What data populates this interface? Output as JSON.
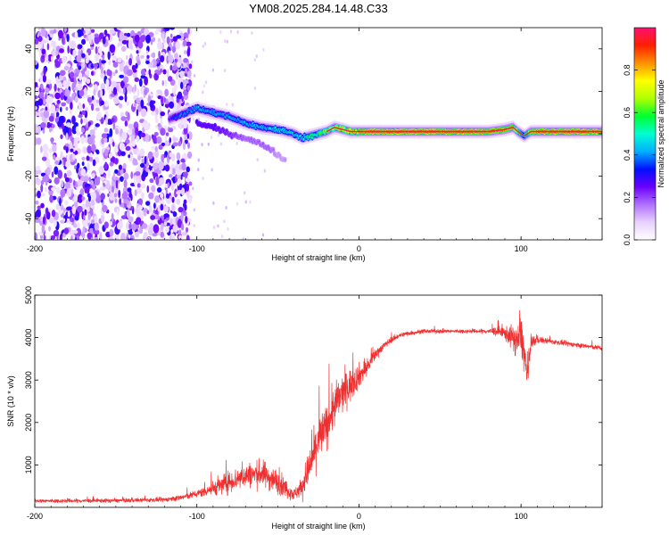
{
  "title": "YM08.2025.284.14.48.C33",
  "chart_data": [
    {
      "type": "heatmap",
      "name": "spectrogram",
      "xlabel": "Height of straight line (km)",
      "ylabel": "Frequency (Hz)",
      "xlim": [
        -200,
        150
      ],
      "ylim": [
        -50,
        50
      ],
      "xticks": [
        -200,
        -100,
        0,
        100
      ],
      "yticks": [
        -40,
        -20,
        0,
        20,
        40
      ],
      "colorbar": {
        "label": "Normalized spectral amplitude",
        "range": [
          0,
          1
        ],
        "ticks": [
          0.0,
          0.2,
          0.4,
          0.6,
          0.8
        ],
        "tick_labels": [
          "0.0",
          "0.2",
          "0.4",
          "0.6",
          "0.8"
        ],
        "colormap": [
          "#ffffff",
          "#e8d0ff",
          "#b070ff",
          "#6a00ff",
          "#0010ff",
          "#00b0ff",
          "#00ffd0",
          "#00ff30",
          "#b0ff00",
          "#ffff00",
          "#ff9000",
          "#ff2000",
          "#ff1070"
        ]
      },
      "noise_region_x": [
        -200,
        -108
      ],
      "ridge": {
        "x": [
          -117,
          -110,
          -100,
          -90,
          -80,
          -70,
          -60,
          -50,
          -40,
          -35,
          -30,
          -25,
          -20,
          -15,
          -10,
          -5,
          0,
          10,
          20,
          40,
          60,
          70,
          80,
          90,
          95,
          98,
          102,
          106,
          110,
          120,
          150
        ],
        "freq": [
          7,
          9,
          12,
          10,
          8,
          5,
          3,
          2,
          0,
          -2,
          -1,
          0,
          1,
          3,
          2,
          1,
          1,
          1,
          1,
          1,
          1,
          1,
          1,
          2,
          3,
          1,
          -1,
          1,
          1,
          1,
          1
        ],
        "amplitude": [
          0.3,
          0.4,
          0.45,
          0.45,
          0.45,
          0.45,
          0.45,
          0.5,
          0.5,
          0.5,
          0.55,
          0.6,
          0.65,
          0.75,
          0.8,
          0.85,
          0.9,
          0.95,
          0.95,
          0.95,
          0.95,
          0.95,
          0.95,
          0.9,
          0.9,
          0.7,
          0.5,
          0.8,
          0.95,
          0.95,
          0.95
        ]
      },
      "branch": {
        "x": [
          -100,
          -90,
          -80,
          -70,
          -60,
          -55,
          -50,
          -45
        ],
        "freq": [
          5,
          3,
          0,
          -2,
          -5,
          -7,
          -10,
          -13
        ],
        "amplitude": [
          0.3,
          0.3,
          0.25,
          0.2,
          0.2,
          0.2,
          0.15,
          0.15
        ]
      }
    },
    {
      "type": "line",
      "name": "snr",
      "xlabel": "Height of straight line (km)",
      "ylabel": "SNR (10 * v/v)",
      "xlim": [
        -200,
        150
      ],
      "ylim": [
        0,
        5000
      ],
      "xticks": [
        -200,
        -100,
        0,
        100
      ],
      "yticks": [
        1000,
        2000,
        3000,
        4000,
        5000
      ],
      "color": "#f03030",
      "series": [
        {
          "name": "SNR",
          "x": [
            -200,
            -150,
            -120,
            -110,
            -100,
            -90,
            -80,
            -70,
            -60,
            -50,
            -40,
            -35,
            -30,
            -25,
            -20,
            -15,
            -10,
            -5,
            0,
            5,
            10,
            15,
            20,
            25,
            30,
            40,
            50,
            60,
            70,
            80,
            85,
            90,
            95,
            98,
            100,
            102,
            104,
            106,
            110,
            120,
            130,
            140,
            150
          ],
          "y": [
            150,
            160,
            180,
            230,
            320,
            450,
            600,
            750,
            800,
            600,
            300,
            500,
            1000,
            1600,
            1900,
            2400,
            2700,
            2900,
            3100,
            3300,
            3600,
            3800,
            3950,
            4050,
            4100,
            4150,
            4150,
            4150,
            4150,
            4150,
            4150,
            4100,
            4000,
            3900,
            4100,
            3600,
            3000,
            3900,
            3950,
            3900,
            3850,
            3800,
            3750
          ],
          "noise": [
            80,
            80,
            90,
            120,
            150,
            300,
            450,
            500,
            550,
            500,
            250,
            400,
            800,
            1000,
            900,
            900,
            800,
            700,
            500,
            350,
            250,
            150,
            120,
            100,
            100,
            80,
            80,
            80,
            80,
            100,
            200,
            300,
            500,
            700,
            900,
            800,
            600,
            300,
            150,
            100,
            100,
            100,
            100
          ]
        }
      ]
    }
  ]
}
